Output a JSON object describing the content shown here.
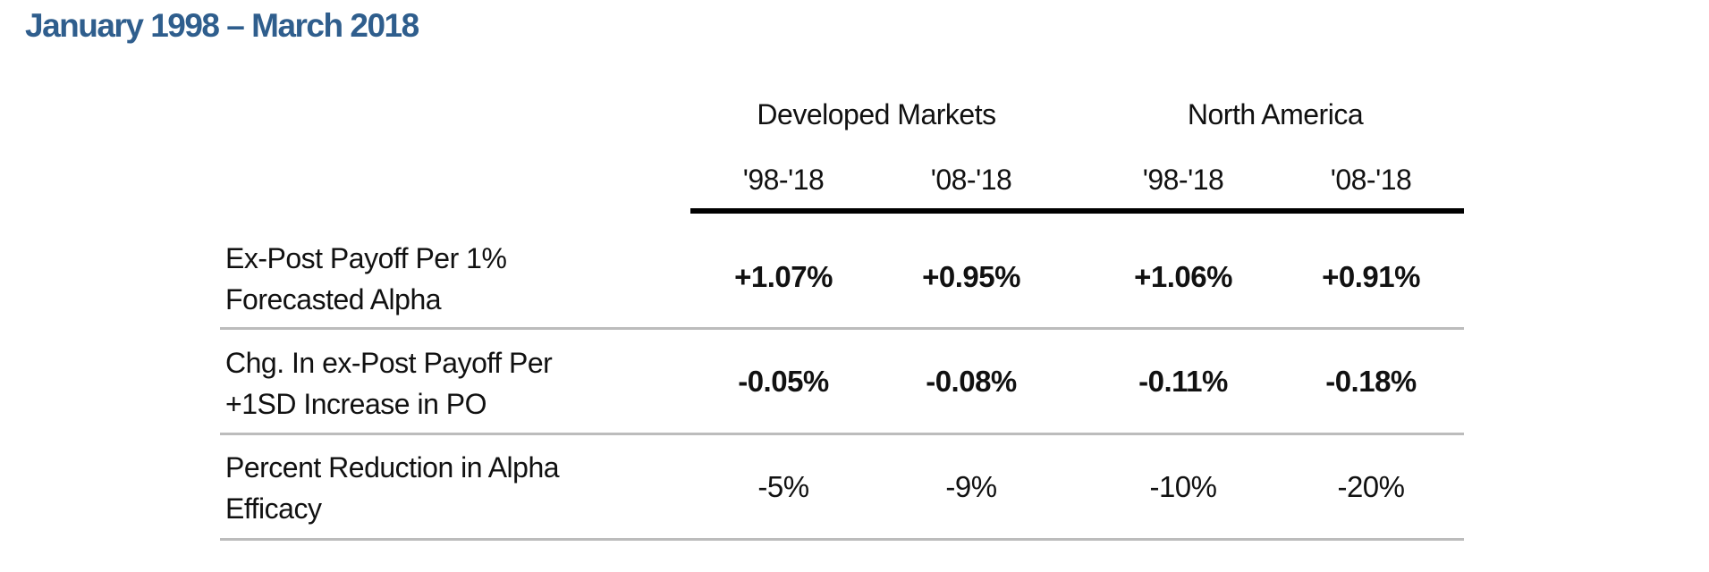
{
  "title": "January 1998 – March 2018",
  "groups": [
    {
      "label": "Developed Markets"
    },
    {
      "label": "North America"
    }
  ],
  "columns": [
    "'98-'18",
    "'08-'18",
    "'98-'18",
    "'08-'18"
  ],
  "rows": [
    {
      "label_line1": "Ex-Post Payoff Per 1%",
      "label_line2": "Forecasted Alpha",
      "values": [
        "+1.07%",
        "+0.95%",
        "+1.06%",
        "+0.91%"
      ],
      "bold": true
    },
    {
      "label_line1": "Chg. In ex-Post Payoff Per",
      "label_line2": "+1SD Increase in PO",
      "values": [
        "-0.05%",
        "-0.08%",
        "-0.11%",
        "-0.18%"
      ],
      "bold": true
    },
    {
      "label_line1": "Percent Reduction in Alpha",
      "label_line2": "Efficacy",
      "values": [
        "-5%",
        "-9%",
        "-10%",
        "-20%"
      ],
      "bold": false
    }
  ]
}
